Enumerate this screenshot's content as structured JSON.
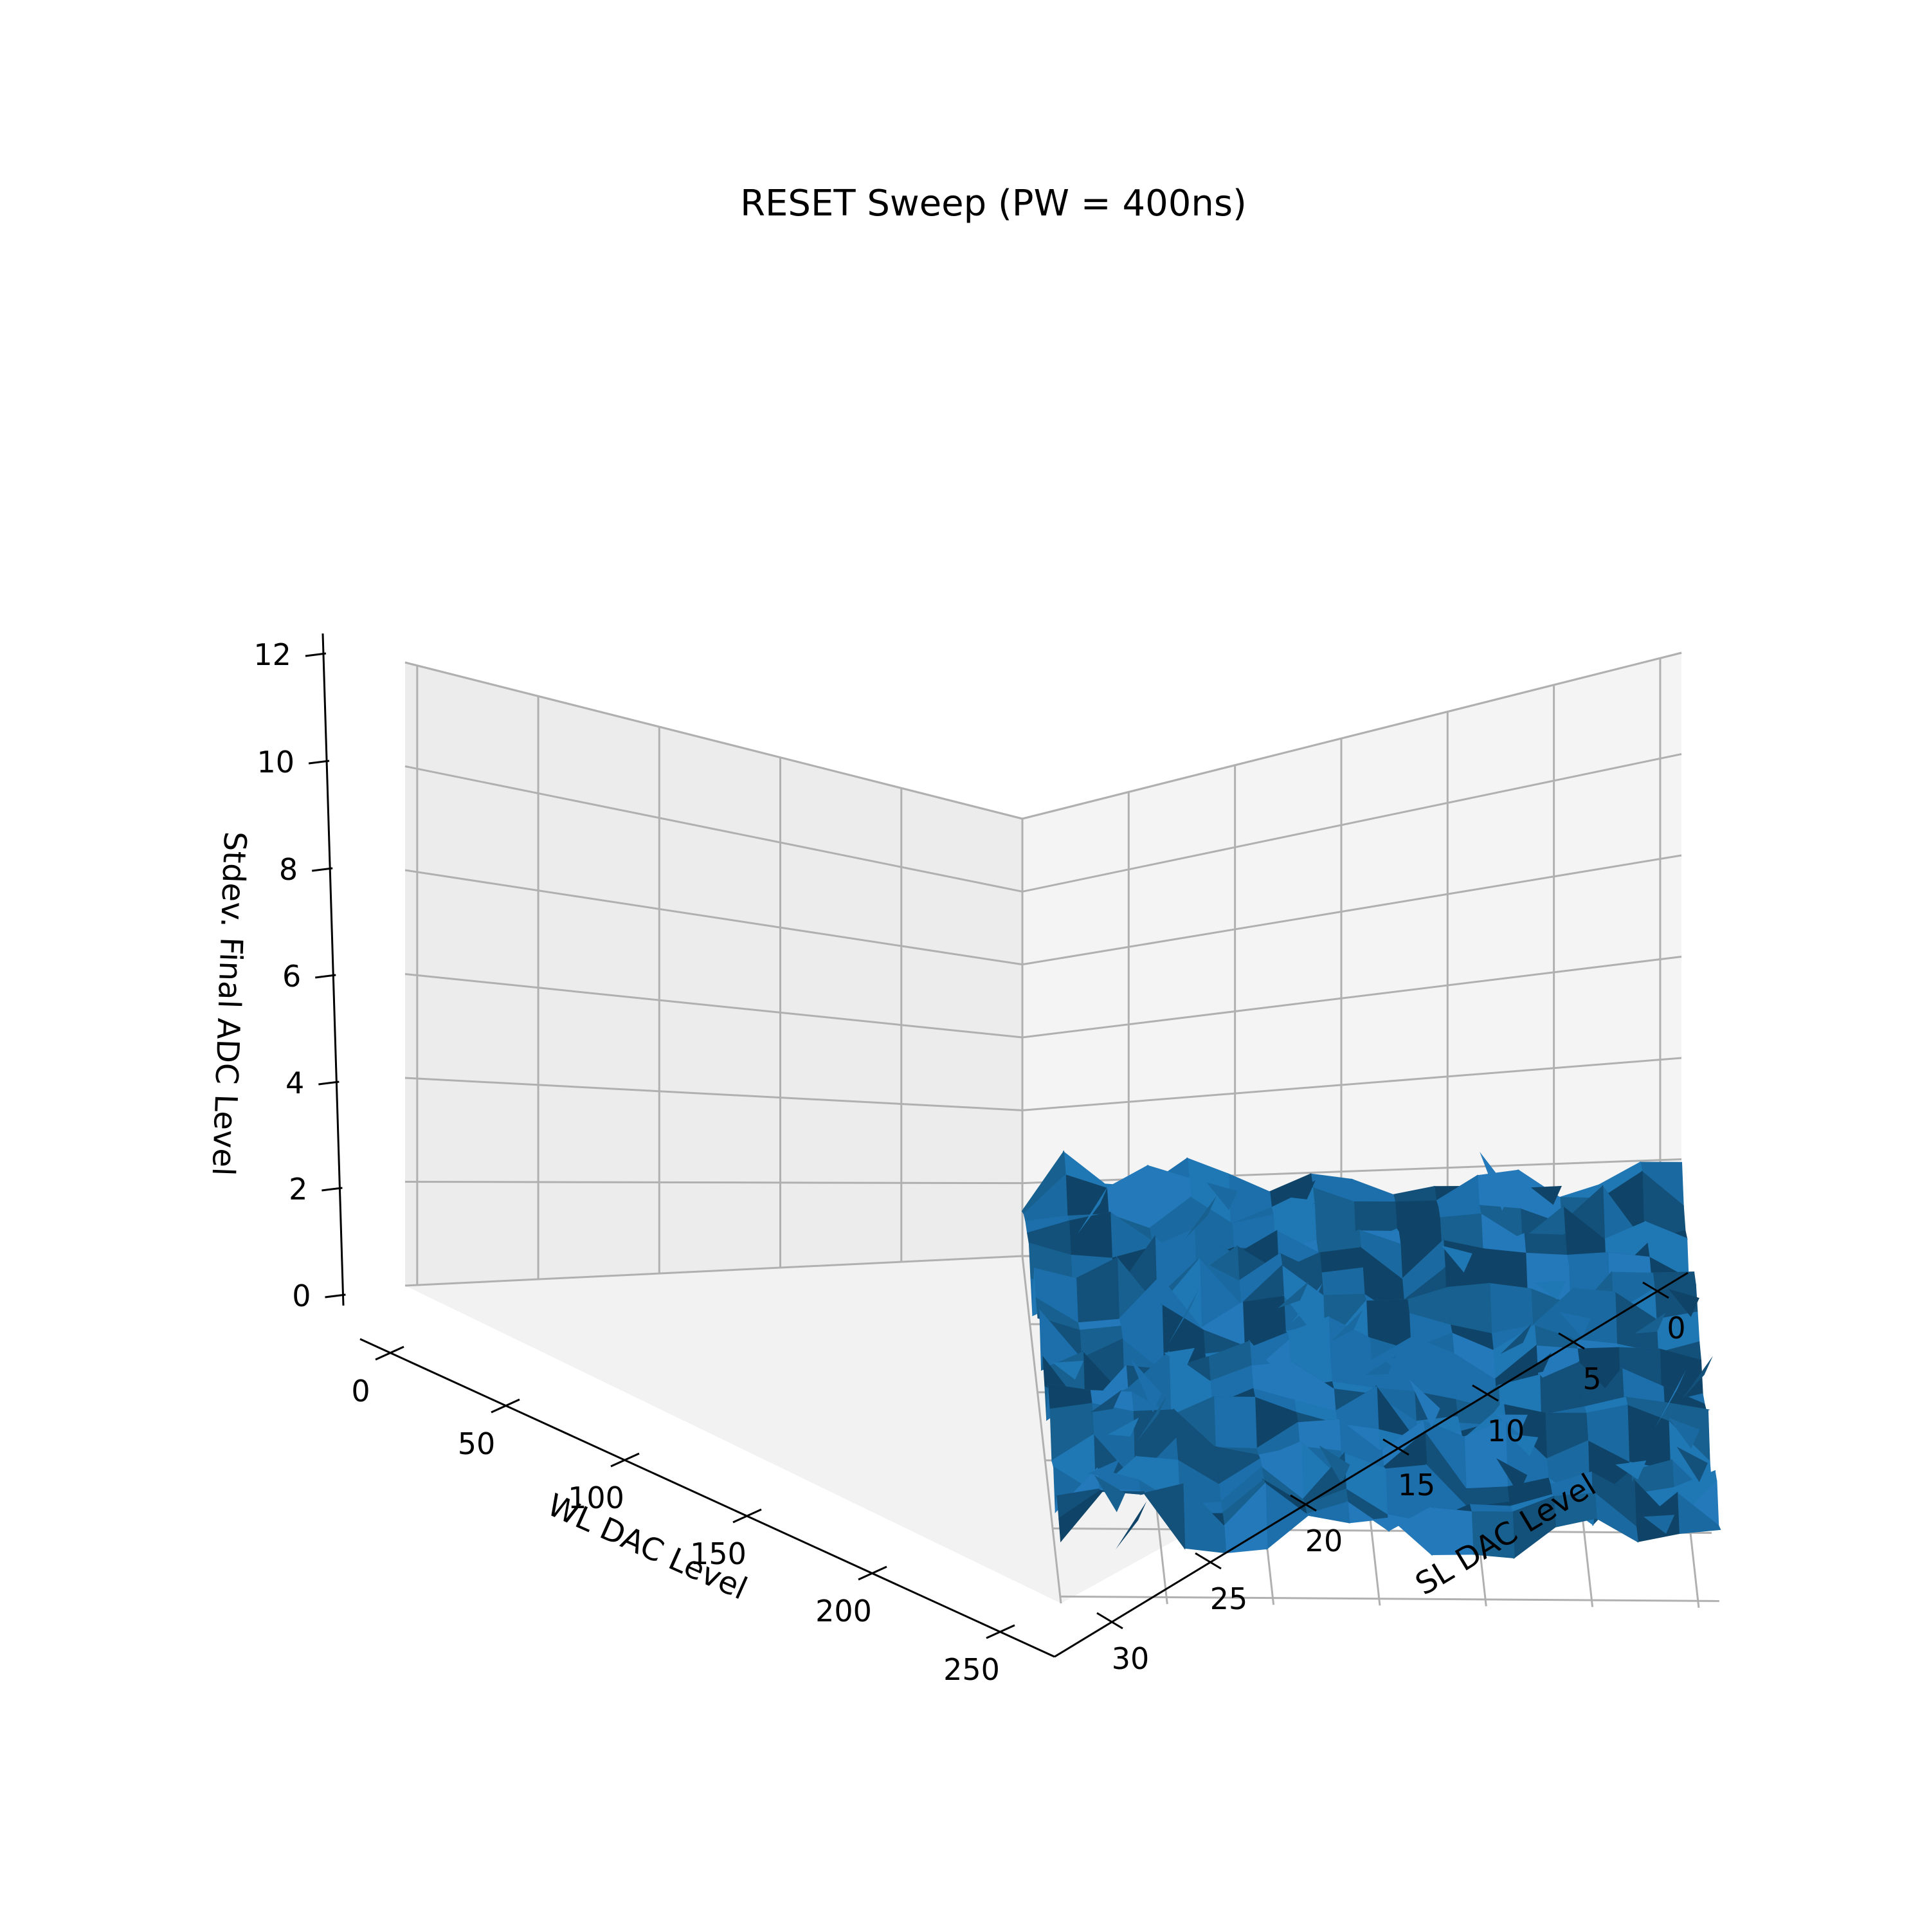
{
  "chart_data": {
    "type": "surface3d",
    "title": "RESET Sweep (PW = 400ns)",
    "xlabel": "WL DAC Level",
    "ylabel": "SL DAC Level",
    "zlabel": "Stdev. Final ADC Level",
    "x_ticks": [
      "0",
      "50",
      "100",
      "150",
      "200",
      "250"
    ],
    "y_ticks": [
      "0",
      "5",
      "10",
      "15",
      "20",
      "25",
      "30"
    ],
    "z_ticks": [
      "0",
      "2",
      "4",
      "6",
      "8",
      "10",
      "12"
    ],
    "xlim": [
      0,
      255
    ],
    "ylim": [
      0,
      31
    ],
    "zlim": [
      0,
      12
    ],
    "grid": true,
    "surface_color": "#1f77b4",
    "pane_color": "#f2f2f2",
    "grid_color": "#b0b0b0",
    "surface_level_range": [
      0.5,
      4.5
    ],
    "surface_typical_level": 2.3
  }
}
